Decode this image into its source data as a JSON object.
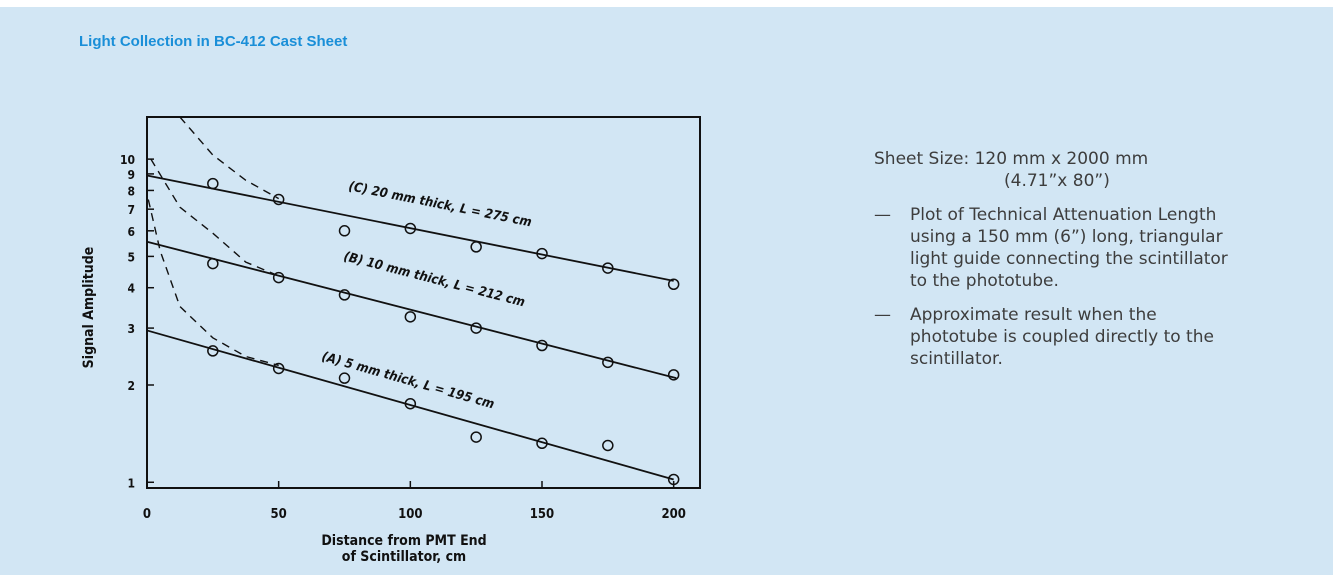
{
  "header": {
    "title": "Light Collection in BC-412 Cast Sheet"
  },
  "notes": {
    "sheet_size": "Sheet Size: 120 mm x 2000 mm",
    "sheet_size_sub": "(4.71”x 80”)",
    "items": [
      {
        "dash": "—",
        "text": "Plot of Technical Attenuation Length using a 150 mm (6”) long, triangular light guide connecting the scintillator to the phototube."
      },
      {
        "dash": "—",
        "text": "Approximate result when the phototube is coupled directly to the scintillator."
      }
    ]
  },
  "chart_data": {
    "type": "scatter",
    "xlabel": "Distance from PMT End of Scintillator, cm",
    "xlabel_lines": [
      "Distance from PMT End",
      "of Scintillator, cm"
    ],
    "ylabel": "Signal Amplitude",
    "x_scale": "linear",
    "y_scale": "log",
    "xlim": [
      0,
      210
    ],
    "ylim": [
      0.96,
      13.5
    ],
    "x_ticks": [
      0,
      50,
      100,
      150,
      200
    ],
    "y_ticks": [
      1,
      2,
      3,
      4,
      5,
      6,
      7,
      8,
      9,
      10
    ],
    "grid": false,
    "series": [
      {
        "name": "(C) 20 mm thick, L = 275 cm",
        "points": [
          [
            25,
            8.4
          ],
          [
            50,
            7.5
          ],
          [
            75,
            6.0
          ],
          [
            100,
            6.1
          ],
          [
            125,
            5.35
          ],
          [
            150,
            5.1
          ],
          [
            175,
            4.6
          ],
          [
            200,
            4.1
          ]
        ],
        "fit": {
          "x": [
            0,
            200
          ],
          "y": [
            8.9,
            4.2
          ]
        },
        "dashed_x": [
          12.5,
          25,
          37.5,
          50
        ],
        "dashed_y": [
          13.5,
          10.3,
          8.6,
          7.55
        ]
      },
      {
        "name": "(B) 10 mm thick, L = 212 cm",
        "points": [
          [
            25,
            4.75
          ],
          [
            50,
            4.3
          ],
          [
            75,
            3.8
          ],
          [
            100,
            3.25
          ],
          [
            125,
            3.0
          ],
          [
            150,
            2.65
          ],
          [
            175,
            2.35
          ],
          [
            200,
            2.15
          ]
        ],
        "fit": {
          "x": [
            0,
            201
          ],
          "y": [
            5.55,
            2.1
          ]
        },
        "dashed_x": [
          1.5,
          12.5,
          25,
          37.5,
          50
        ],
        "dashed_y": [
          10.0,
          7.1,
          5.9,
          4.8,
          4.35
        ]
      },
      {
        "name": "(A) 5 mm thick, L = 195 cm",
        "points": [
          [
            25,
            2.55
          ],
          [
            50,
            2.25
          ],
          [
            75,
            2.1
          ],
          [
            100,
            1.75
          ],
          [
            125,
            1.38
          ],
          [
            150,
            1.32
          ],
          [
            175,
            1.3
          ],
          [
            200,
            1.02
          ]
        ],
        "fit": {
          "x": [
            0,
            200
          ],
          "y": [
            2.95,
            1.02
          ]
        },
        "dashed_x": [
          0.5,
          5,
          12.5,
          25,
          37.5,
          50
        ],
        "dashed_y": [
          7.5,
          5.2,
          3.5,
          2.8,
          2.45,
          2.3
        ]
      }
    ]
  }
}
